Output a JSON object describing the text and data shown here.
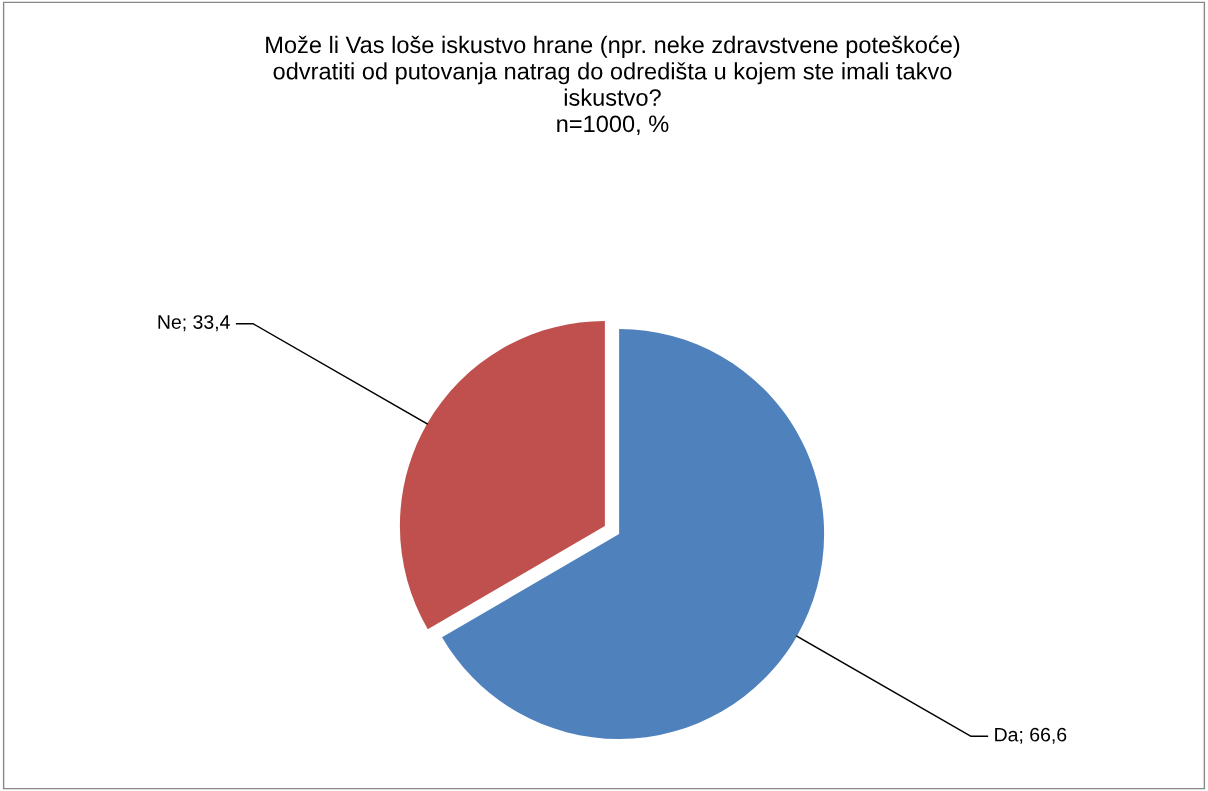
{
  "chart_data": {
    "type": "pie",
    "title": "Može li Vas loše iskustvo hrane (npr. neke zdravstvene poteškoće)\nodvratiti od putovanja natrag do odredišta u kojem ste imali takvo\niskustvo?\nn=1000, %",
    "categories": [
      "Da",
      "Ne"
    ],
    "values": [
      66.6,
      33.4
    ],
    "colors": [
      "#4f81bd",
      "#c0504d"
    ],
    "value_labels": [
      "66,6",
      "33,4"
    ],
    "legend": false
  }
}
